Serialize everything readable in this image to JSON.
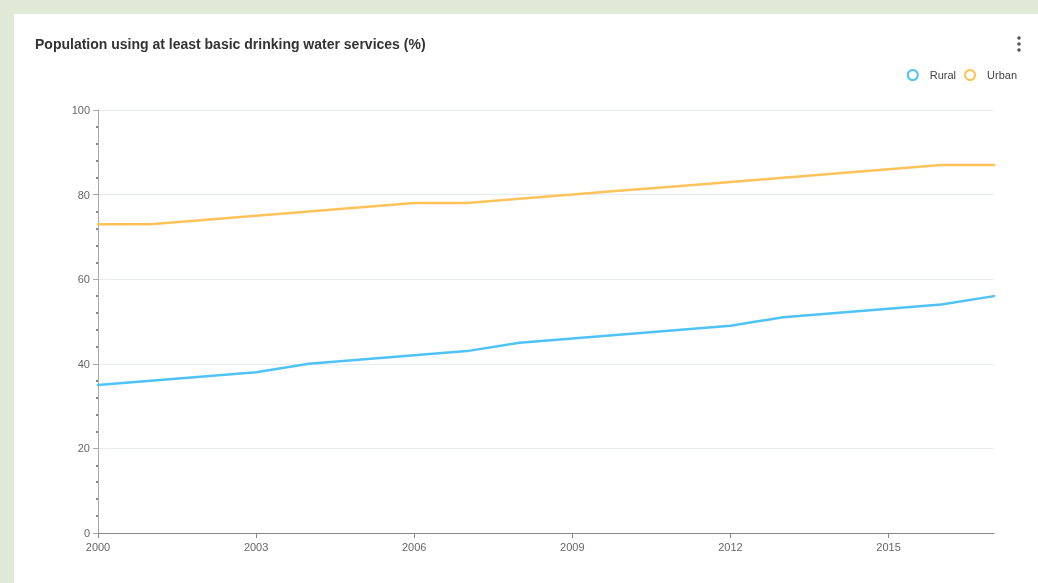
{
  "chart_data": {
    "type": "line",
    "title": "Population using at least basic drinking water services (%)",
    "x": [
      2000,
      2001,
      2002,
      2003,
      2004,
      2005,
      2006,
      2007,
      2008,
      2009,
      2010,
      2011,
      2012,
      2013,
      2014,
      2015,
      2016,
      2017
    ],
    "series": [
      {
        "name": "Rural",
        "color": "#4fc3f7",
        "values": [
          35,
          36,
          37,
          38,
          40,
          41,
          42,
          43,
          45,
          46,
          47,
          48,
          49,
          51,
          52,
          53,
          54,
          56
        ]
      },
      {
        "name": "Urban",
        "color": "#ffc35a",
        "values": [
          73,
          73,
          74,
          75,
          76,
          77,
          78,
          78,
          79,
          80,
          81,
          82,
          83,
          84,
          85,
          86,
          87,
          87
        ]
      }
    ],
    "xlim": [
      2000,
      2017
    ],
    "xticks": [
      2000,
      2003,
      2006,
      2009,
      2012,
      2015
    ],
    "ylim": [
      0,
      100
    ],
    "yticks": [
      0,
      20,
      40,
      60,
      80,
      100
    ],
    "grid": "y",
    "legend": "top right",
    "marker": "none",
    "line_style": "solid"
  }
}
